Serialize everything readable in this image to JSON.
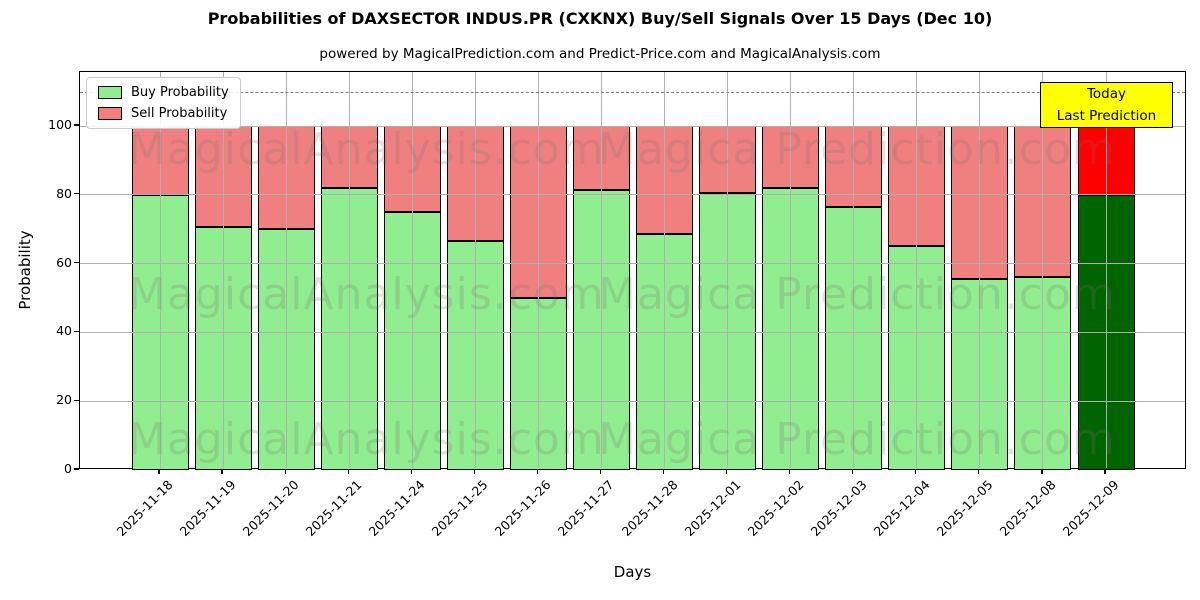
{
  "header": {
    "title": "Probabilities of DAXSECTOR INDUS.PR (CXKNX) Buy/Sell Signals Over 15 Days (Dec 10)",
    "subtitle": "powered by MagicalPrediction.com and Predict-Price.com and MagicalAnalysis.com"
  },
  "legend": {
    "items": [
      {
        "label": "Buy Probability",
        "color": "#90EE90"
      },
      {
        "label": "Sell Probability",
        "color": "#F08080"
      }
    ]
  },
  "annotation": {
    "line1": "Today",
    "line2": "Last Prediction",
    "bg_color": "#FFFF00"
  },
  "watermarks": {
    "left_text": "MagicalAnalysis.com",
    "right_text": "Magica Prediction.com"
  },
  "axes": {
    "xlabel": "Days",
    "ylabel": "Probability",
    "yticks": [
      0,
      20,
      40,
      60,
      80,
      100
    ]
  },
  "chart_data": {
    "type": "bar",
    "stacked": true,
    "title": "Probabilities of DAXSECTOR INDUS.PR (CXKNX) Buy/Sell Signals Over 15 Days (Dec 10)",
    "xlabel": "Days",
    "ylabel": "Probability",
    "ylim": [
      0,
      115.7
    ],
    "grid": true,
    "legend_position": "upper left",
    "categories": [
      "2025-11-18",
      "2025-11-19",
      "2025-11-20",
      "2025-11-21",
      "2025-11-24",
      "2025-11-25",
      "2025-11-26",
      "2025-11-27",
      "2025-11-28",
      "2025-12-01",
      "2025-12-02",
      "2025-12-03",
      "2025-12-04",
      "2025-12-05",
      "2025-12-08",
      "2025-12-09"
    ],
    "series": [
      {
        "name": "Buy Probability",
        "color": "#90EE90",
        "values": [
          80,
          70.5,
          70,
          82,
          75,
          66.5,
          50,
          81.5,
          68.5,
          80.5,
          82,
          76.5,
          65,
          55.5,
          56,
          80
        ]
      },
      {
        "name": "Sell Probability",
        "color": "#F08080",
        "values": [
          20,
          29.5,
          30,
          18,
          25,
          33.5,
          50,
          18.5,
          31.5,
          19.5,
          18,
          23.5,
          35,
          44.5,
          44,
          20
        ]
      }
    ],
    "highlight_last_bar": {
      "buy_color": "#006400",
      "sell_color": "#FF0000",
      "label": "Today Last Prediction"
    },
    "threshold_line": {
      "y": 110,
      "style": "dashed",
      "color": "#7f7f7f"
    }
  }
}
